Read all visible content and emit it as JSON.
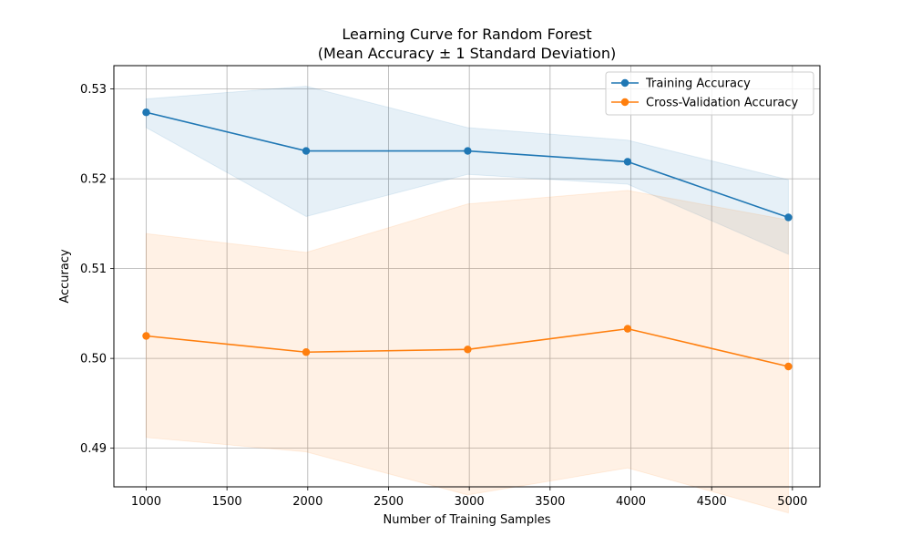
{
  "chart_data": {
    "type": "line",
    "title": "Learning Curve for Random Forest",
    "subtitle": "(Mean Accuracy ± 1 Standard Deviation)",
    "xlabel": "Number of Training Samples",
    "ylabel": "Accuracy",
    "xlim": [
      800,
      5170
    ],
    "ylim": [
      0.4857,
      0.5326
    ],
    "x_ticks": [
      1000,
      1500,
      2000,
      2500,
      3000,
      3500,
      4000,
      4500,
      5000
    ],
    "x_tick_labels": [
      "1000",
      "1500",
      "2000",
      "2500",
      "3000",
      "3500",
      "4000",
      "4500",
      "5000"
    ],
    "y_ticks": [
      0.49,
      0.5,
      0.51,
      0.52,
      0.53
    ],
    "y_tick_labels": [
      "0.49",
      "0.50",
      "0.51",
      "0.52",
      "0.53"
    ],
    "grid": true,
    "legend_position": "top-right",
    "x": [
      1000,
      1990,
      2990,
      3980,
      4975
    ],
    "series": [
      {
        "name": "Training Accuracy",
        "color": "#1f77b4",
        "values": [
          0.5274,
          0.5231,
          0.5231,
          0.5219,
          0.5157
        ],
        "std_lower": [
          0.5257,
          0.5158,
          0.5205,
          0.5194,
          0.5116
        ],
        "std_upper": [
          0.5289,
          0.5303,
          0.5257,
          0.5243,
          0.5199
        ]
      },
      {
        "name": "Cross-Validation Accuracy",
        "color": "#ff7f0e",
        "values": [
          0.5025,
          0.5007,
          0.501,
          0.5033,
          0.4991
        ],
        "std_lower": [
          0.4912,
          0.4896,
          0.4848,
          0.4878,
          0.4828
        ],
        "std_upper": [
          0.5139,
          0.5118,
          0.5172,
          0.5187,
          0.5154
        ]
      }
    ]
  }
}
